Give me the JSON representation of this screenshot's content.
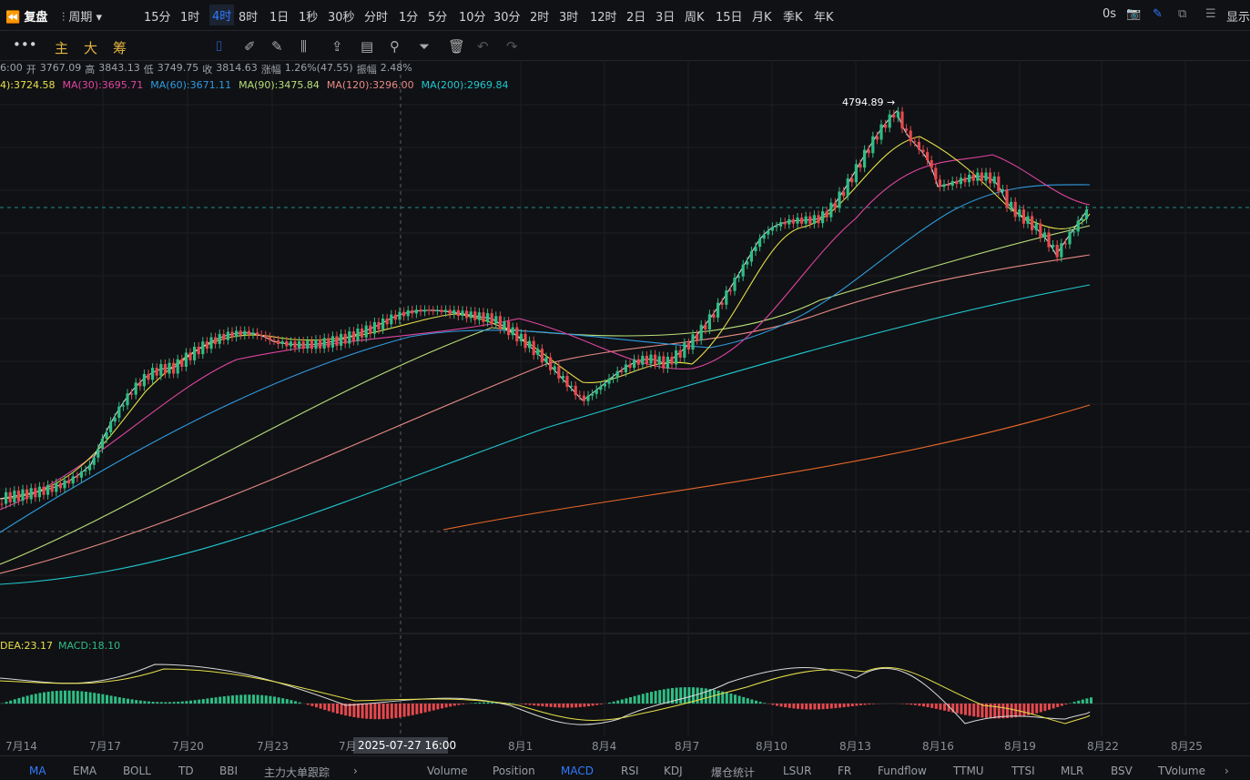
{
  "toolbar": {
    "replay": "复盘",
    "period": "周期",
    "intervals": [
      "15分",
      "1时",
      "4时",
      "8时",
      "1日",
      "1秒",
      "30秒",
      "分时",
      "1分",
      "5分",
      "10分",
      "30分",
      "2时",
      "3时",
      "12时",
      "2日",
      "3日",
      "周K",
      "15日",
      "月K",
      "季K",
      "年K"
    ],
    "timer": "0s",
    "display": "显示"
  },
  "tools": [
    "主",
    "大",
    "筹"
  ],
  "info": [
    "6:00",
    "开",
    "3767.09",
    "高",
    "3843.13",
    "低",
    "3749.75",
    "收",
    "3814.63",
    "涨幅",
    "1.26%(47.55)",
    "振幅",
    "2.48%"
  ],
  "ma_legend": [
    "4):3724.58",
    "MA(30):3695.71",
    "MA(60):3671.11",
    "MA(90):3475.84",
    "MA(120):3296.00",
    "MA(200):2969.84"
  ],
  "peak_label": "4794.89",
  "macd_legend": [
    "DEA:23.17",
    "MACD:18.10"
  ],
  "x_axis": [
    "7月14",
    "7月17",
    "7月20",
    "7月23",
    "7月",
    "8月1",
    "8月4",
    "8月7",
    "8月10",
    "8月13",
    "8月16",
    "8月19",
    "8月22",
    "8月25"
  ],
  "crosshair_label": "2025-07-27 16:00",
  "main_indicators": [
    "MA",
    "EMA",
    "BOLL",
    "TD",
    "BBI",
    "主力大单跟踪"
  ],
  "sub_indicators": [
    "Volume",
    "Position",
    "MACD",
    "RSI",
    "KDJ",
    "爆仓统计",
    "LSUR",
    "FR",
    "Fundflow",
    "TTMU",
    "TTSI",
    "MLR",
    "BSV",
    "TVolume"
  ]
}
